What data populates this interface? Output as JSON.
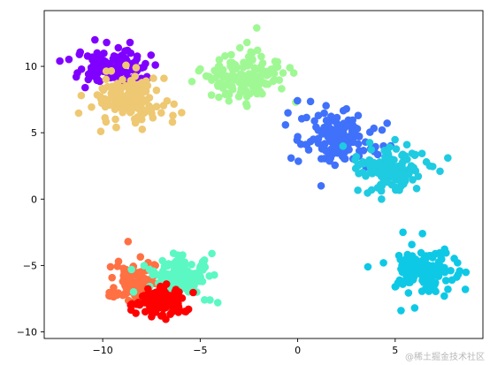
{
  "chart_data": {
    "type": "scatter",
    "xlim": [
      -13,
      9.5
    ],
    "ylim": [
      -10.5,
      14.2
    ],
    "xticks": [
      -10,
      -5,
      0,
      5
    ],
    "yticks": [
      -10,
      -5,
      0,
      5,
      10
    ],
    "xtick_labels": [
      "−10",
      "−5",
      "0",
      "5"
    ],
    "ytick_labels": [
      "−10",
      "−5",
      "0",
      "5",
      "10"
    ],
    "grid": false,
    "legend": "none",
    "series": [
      {
        "color": "#8000ff",
        "center": [
          -9.6,
          9.9
        ],
        "spread": [
          0.8,
          0.7
        ],
        "count": 110,
        "points": [
          [
            -12.2,
            10.4
          ],
          [
            -11.3,
            9.5
          ],
          [
            -10.4,
            12.0
          ],
          [
            -9.8,
            11.8
          ],
          [
            -9.2,
            11.4
          ],
          [
            -8.6,
            11.8
          ],
          [
            -7.3,
            10.1
          ],
          [
            -7.7,
            9.1
          ],
          [
            -10.9,
            8.4
          ]
        ]
      },
      {
        "color": "#eec872",
        "center": [
          -8.6,
          7.6
        ],
        "spread": [
          0.9,
          0.8
        ],
        "count": 140,
        "points": [
          [
            -11.1,
            7.8
          ],
          [
            -10.1,
            5.1
          ],
          [
            -9.3,
            5.4
          ],
          [
            -8.0,
            6.0
          ],
          [
            -7.0,
            6.5
          ],
          [
            -6.4,
            6.3
          ],
          [
            -6.7,
            7.4
          ],
          [
            -7.4,
            9.1
          ]
        ]
      },
      {
        "color": "#a0f895",
        "center": [
          -2.7,
          9.2
        ],
        "spread": [
          0.9,
          0.8
        ],
        "count": 140,
        "points": [
          [
            -5.0,
            9.8
          ],
          [
            -4.1,
            8.6
          ],
          [
            -2.6,
            7.0
          ],
          [
            -2.1,
            12.9
          ],
          [
            -2.6,
            11.8
          ],
          [
            -0.4,
            9.9
          ],
          [
            -0.2,
            9.5
          ],
          [
            -0.1,
            7.3
          ]
        ]
      },
      {
        "color": "#4071fa",
        "center": [
          2.1,
          4.5
        ],
        "spread": [
          0.9,
          0.9
        ],
        "count": 140,
        "points": [
          [
            -0.5,
            6.5
          ],
          [
            0.0,
            4.7
          ],
          [
            1.2,
            1.0
          ],
          [
            3.1,
            6.3
          ],
          [
            4.4,
            4.0
          ],
          [
            3.5,
            2.4
          ],
          [
            2.5,
            6.8
          ]
        ]
      },
      {
        "color": "#1ecbe1",
        "center": [
          4.7,
          2.3
        ],
        "spread": [
          0.9,
          0.8
        ],
        "count": 140,
        "points": [
          [
            3.1,
            2.6
          ],
          [
            4.3,
            0.0
          ],
          [
            5.0,
            0.9
          ],
          [
            6.1,
            0.8
          ],
          [
            6.6,
            2.8
          ],
          [
            7.3,
            2.1
          ],
          [
            7.7,
            3.1
          ],
          [
            5.6,
            4.1
          ]
        ]
      },
      {
        "color": "#0ec9e6",
        "center": [
          6.6,
          -5.3
        ],
        "spread": [
          0.8,
          0.8
        ],
        "count": 140,
        "points": [
          [
            5.4,
            -2.5
          ],
          [
            6.4,
            -2.6
          ],
          [
            3.6,
            -5.1
          ],
          [
            4.4,
            -4.8
          ],
          [
            5.0,
            -6.6
          ],
          [
            5.3,
            -8.4
          ],
          [
            6.0,
            -8.2
          ],
          [
            8.2,
            -4.8
          ],
          [
            8.6,
            -6.8
          ]
        ]
      },
      {
        "color": "#ff7043",
        "center": [
          -8.3,
          -6.4
        ],
        "spread": [
          0.6,
          0.8
        ],
        "count": 120,
        "points": [
          [
            -8.7,
            -3.2
          ],
          [
            -9.6,
            -5.1
          ],
          [
            -9.6,
            -7.3
          ],
          [
            -8.6,
            -6.3
          ],
          [
            -7.3,
            -5.0
          ],
          [
            -8.2,
            -5.8
          ]
        ]
      },
      {
        "color": "#5bf8c3",
        "center": [
          -6.1,
          -5.9
        ],
        "spread": [
          0.7,
          0.7
        ],
        "count": 130,
        "points": [
          [
            -4.4,
            -4.1
          ],
          [
            -4.5,
            -7.6
          ],
          [
            -4.1,
            -7.8
          ],
          [
            -7.6,
            -5.3
          ],
          [
            -5.0,
            -5.1
          ],
          [
            -5.4,
            -6.3
          ]
        ]
      },
      {
        "color": "#ff0000",
        "center": [
          -6.9,
          -7.7
        ],
        "spread": [
          0.6,
          0.5
        ],
        "count": 100,
        "points": [
          [
            -8.3,
            -8.6
          ],
          [
            -7.9,
            -7.3
          ],
          [
            -5.6,
            -8.3
          ],
          [
            -6.4,
            -7.8
          ],
          [
            -7.0,
            -8.8
          ],
          [
            -6.2,
            -7.1
          ]
        ]
      }
    ]
  },
  "watermark": "@稀土掘金技术社区"
}
